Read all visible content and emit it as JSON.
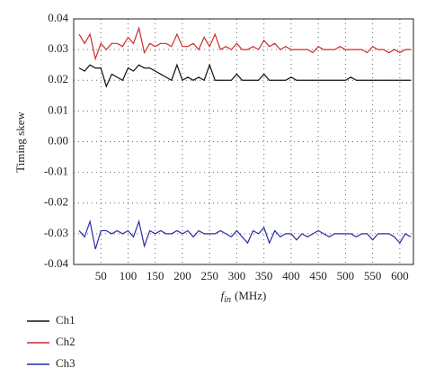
{
  "chart_data": {
    "type": "line",
    "y_label": "Timing skew",
    "x_label": {
      "symbol": "f",
      "subscript": "in",
      "unit": "(MHz)"
    },
    "x": [
      10,
      20,
      30,
      40,
      50,
      60,
      70,
      80,
      90,
      100,
      110,
      120,
      130,
      140,
      150,
      160,
      170,
      180,
      190,
      200,
      210,
      220,
      230,
      240,
      250,
      260,
      270,
      280,
      290,
      300,
      310,
      320,
      330,
      340,
      350,
      360,
      370,
      380,
      390,
      400,
      410,
      420,
      430,
      440,
      450,
      460,
      470,
      480,
      490,
      500,
      510,
      520,
      530,
      540,
      550,
      560,
      570,
      580,
      590,
      600,
      610,
      620
    ],
    "series": [
      {
        "name": "Ch1",
        "color": "#111111",
        "values": [
          0.024,
          0.023,
          0.025,
          0.024,
          0.024,
          0.018,
          0.022,
          0.021,
          0.02,
          0.024,
          0.023,
          0.025,
          0.024,
          0.024,
          0.023,
          0.022,
          0.021,
          0.02,
          0.025,
          0.02,
          0.021,
          0.02,
          0.021,
          0.02,
          0.025,
          0.02,
          0.02,
          0.02,
          0.02,
          0.022,
          0.02,
          0.02,
          0.02,
          0.02,
          0.022,
          0.02,
          0.02,
          0.02,
          0.02,
          0.021,
          0.02,
          0.02,
          0.02,
          0.02,
          0.02,
          0.02,
          0.02,
          0.02,
          0.02,
          0.02,
          0.021,
          0.02,
          0.02,
          0.02,
          0.02,
          0.02,
          0.02,
          0.02,
          0.02,
          0.02,
          0.02,
          0.02
        ]
      },
      {
        "name": "Ch2",
        "color": "#cc2b2b",
        "values": [
          0.035,
          0.032,
          0.035,
          0.027,
          0.032,
          0.03,
          0.032,
          0.032,
          0.031,
          0.034,
          0.032,
          0.037,
          0.029,
          0.032,
          0.031,
          0.032,
          0.032,
          0.031,
          0.035,
          0.031,
          0.031,
          0.032,
          0.03,
          0.034,
          0.031,
          0.035,
          0.03,
          0.031,
          0.03,
          0.032,
          0.03,
          0.03,
          0.031,
          0.03,
          0.033,
          0.031,
          0.032,
          0.03,
          0.031,
          0.03,
          0.03,
          0.03,
          0.03,
          0.029,
          0.031,
          0.03,
          0.03,
          0.03,
          0.031,
          0.03,
          0.03,
          0.03,
          0.03,
          0.029,
          0.031,
          0.03,
          0.03,
          0.029,
          0.03,
          0.029,
          0.03,
          0.03
        ]
      },
      {
        "name": "Ch3",
        "color": "#2a2ca6",
        "values": [
          -0.029,
          -0.031,
          -0.026,
          -0.035,
          -0.029,
          -0.029,
          -0.03,
          -0.029,
          -0.03,
          -0.029,
          -0.031,
          -0.026,
          -0.034,
          -0.029,
          -0.03,
          -0.029,
          -0.03,
          -0.03,
          -0.029,
          -0.03,
          -0.029,
          -0.031,
          -0.029,
          -0.03,
          -0.03,
          -0.03,
          -0.029,
          -0.03,
          -0.031,
          -0.029,
          -0.031,
          -0.033,
          -0.029,
          -0.03,
          -0.028,
          -0.033,
          -0.029,
          -0.031,
          -0.03,
          -0.03,
          -0.032,
          -0.03,
          -0.031,
          -0.03,
          -0.029,
          -0.03,
          -0.031,
          -0.03,
          -0.03,
          -0.03,
          -0.03,
          -0.031,
          -0.03,
          -0.03,
          -0.032,
          -0.03,
          -0.03,
          -0.03,
          -0.031,
          -0.033,
          -0.03,
          -0.031
        ]
      }
    ],
    "xlim": [
      0,
      625
    ],
    "xticks": [
      50,
      100,
      150,
      200,
      250,
      300,
      350,
      400,
      450,
      500,
      550,
      600
    ],
    "ylim": [
      -0.04,
      0.04
    ],
    "yticks": [
      0.04,
      0.03,
      0.02,
      0.01,
      {
        "value": 0,
        "label": "0.00"
      },
      -0.01,
      -0.02,
      -0.03,
      -0.04
    ],
    "grid": true
  }
}
